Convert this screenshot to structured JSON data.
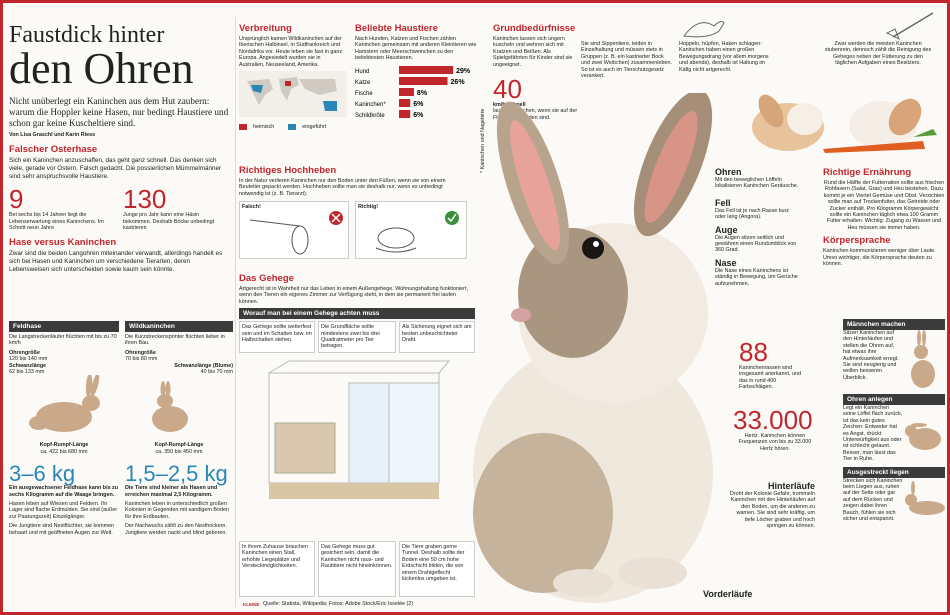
{
  "title_line1": "Faustdick hinter",
  "title_line2": "den Ohren",
  "lead": "Nicht unüberlegt ein Kaninchen aus dem Hut zaubern: warum die Hoppler keine Hasen, nur bedingt Haustiere und schon gar keine Kuscheltiere sind.",
  "byline": "Von Lisa Graschl und Karin Riess",
  "osterhase": {
    "head": "Falscher Osterhase",
    "text": "Sich ein Kaninchen anzuschaffen, das geht ganz schnell. Das denken sich viele, gerade vor Ostern. Falsch gedacht. Die possierlichen Mümmelmänner sind sehr anspruchsvolle Haustiere."
  },
  "num9": {
    "value": "9",
    "text": "Bei sechs bis 14 Jahren liegt die Lebenserwartung eines Kaninchens. Im Schnitt neun Jahre"
  },
  "num130": {
    "value": "130",
    "text": "Junge pro Jahr kann eine Häsin bekommen. Deshalb Böcke unbedingt kastrieren"
  },
  "hase": {
    "head": "Hase versus Kaninchen",
    "text": "Zwar sind die beiden Langohren miteinander verwandt, allerdings handelt es sich bei Hasen und Kaninchen um verschiedene Tierarten, deren Lebensweisen sich unterscheiden sowie kaum sein könnte."
  },
  "feldhase": {
    "label": "Feldhase",
    "text": "Die Langstreckenläufer flüchten mit bis zu 70 km/h",
    "ohr_label": "Ohrengröße",
    "ohr_val": "120 bis 140 mm",
    "schwanz_label": "Schwanzlänge",
    "schwanz_val": "62 bis 133 mm",
    "kr_label": "Kopf-Rumpf-Länge",
    "kr_val": "ca. 422 bis 680 mm",
    "weight": "3–6 kg",
    "weight_text": "Ein ausgewachsener Feldhase kann bis zu sechs Kilogramm auf die Waage bringen.",
    "life_text": "Hasen leben auf Wiesen und Feldern. Ihr Lager sind flache Erdmulden. Sie sind (außer zur Paarungszeit) Einzelgänger.",
    "young_text": "Die Jungtiere sind Nestflüchter, sie kommen behaart und mit geöffneten Augen zur Welt."
  },
  "wildkaninchen": {
    "label": "Wildkaninchen",
    "text": "Die Kurzstreckensprinter flüchten lieber in ihren Bau.",
    "ohr_label": "Ohrengröße",
    "ohr_val": "70 bis 80 mm",
    "schwanz_label": "Schwanzlänge (Blume)",
    "schwanz_val": "40 bis 70 mm",
    "kr_label": "Kopf-Rumpf-Länge",
    "kr_val": "ca. 350 bis 450 mm",
    "weight": "1,5–2,5 kg",
    "weight_text": "Die Tiere sind kleiner als Hasen und erreichen maximal 2,5 Kilogramm.",
    "life_text": "Kaninchen leben in unterschiedlich großen Kolonien in Gegenden mit sandigem Boden für ihre Erdbauten.",
    "young_text": "Der Nachwuchs zählt zu den Nesthockern. Jungtiere werden nackt und blind geboren."
  },
  "verbreitung": {
    "head": "Verbreitung",
    "text": "Ursprünglich kamen Wildkaninchen auf der Iberischen Halbinsel, in Südfrankreich und Nordafrika vor. Heute leben sie fast in ganz Europa. Angesiedelt wurden sie in Australien, Neuseeland, Amerika.",
    "legend1": "heimisch",
    "legend2": "eingeführt"
  },
  "haustiere": {
    "head": "Beliebte Haustiere",
    "text": "Nach Hunden, Katzen und Fischen zählen Kaninchen gemeinsam mit anderen Kleintieren wie Hamstern oder Meerschweinchen zu den beliebtesten Haustieren."
  },
  "chart_data": {
    "type": "bar",
    "categories": [
      "Hund",
      "Katze",
      "Fische",
      "Kaninchen*",
      "Schildkröte"
    ],
    "values": [
      29,
      26,
      8,
      6,
      6
    ],
    "value_labels": [
      "29%",
      "26%",
      "8%",
      "6%",
      "6%"
    ],
    "note": "* Kaninchen und Nagetiere",
    "xlim": [
      0,
      30
    ]
  },
  "grundbed": {
    "head": "Grundbedürfnisse",
    "text": "Kaninchen lassen sich ungern kuscheln und wehren sich mit Kratzen und Beißen. Als Spielgefährten für Kinder sind sie ungeeignet.",
    "sipp": "Sie sind Sippentiere, leiden in Einzelhaltung und müssen stets in Gruppen (z. B. ein kastrierter Bock und zwei Weibchen) zusammenleben. So ist es auch im Tierschutzgesetz verankert.",
    "hopp": "Hoppeln, hüpfen, Haken schlagen: Kaninchen haben einen großen Bewegungsdrang (vor allem morgens und abends), deshalb ist Haltung im Käfig nicht artgerecht.",
    "zwar": "Zwar werden die meisten Kaninchen stubenrein, dennoch zählt die Reinigung des Geheges neben der Fütterung zu den täglichen Aufgaben eines Besitzers."
  },
  "speed": {
    "value": "40",
    "unit": "km/h schnell",
    "text": "laufen Kaninchen, wenn sie auf der Flucht vor Feinden sind."
  },
  "hochheben": {
    "head": "Richtiges Hochheben",
    "text": "In der Natur verlieren Kaninchen nur den Boden unter den Füßen, wenn sie von einem Beutetier gepackt werden. Hochheben sollte man sie deshalb nur, wenn es unbedingt notwendig ist (z. B. Tierarzt).",
    "falsch": "Falsch!",
    "richtig": "Richtig!"
  },
  "gehege": {
    "head": "Das Gehege",
    "text": "Artgerecht ist in Wahrheit nur das Leben in einem Außengehege. Wohnungshaltung funktioniert, wenn den Tieren ein eigenes Zimmer zur Verfügung steht, in dem sie permanent frei laufen können.",
    "bar": "Worauf man bei einem Gehege achten muss",
    "b1": "Das Gehege sollte wetterfest sein und im Schatten bzw. im Halbschatten stehen.",
    "b2": "Die Grundfläche sollte mindestens zwei bis drei Quadratmeter pro Tier betragen.",
    "b3": "Als Sicherung eignet sich am besten unbeschichteter Draht.",
    "c1": "In ihrem Zuhause brauchen Kaninchen einen Stall, erhöhte Liegeplätze und Versteckmöglichkeiten.",
    "c2": "Das Gehege muss gut gesichert sein, damit die Kaninchen nicht raus- und Raubtiere nicht hineinkönnen.",
    "c3": "Die Tiere graben gerne Tunnel. Deshalb sollte der Boden eine 50 cm hohe Erdschicht bilden, die von einem Drahtgeflecht lückenlos umgeben ist.",
    "source": "Quelle: Statista, Wikipedia; Fotos: Adobe Stock/Eric Isselée (2)",
    "logo": "KLEINE"
  },
  "anatomy": {
    "ohren_h": "Ohren",
    "ohren_t": "Mit den beweglichen Löffeln lokalisieren Kaninchen Geräusche.",
    "fell_h": "Fell",
    "fell_t": "Das Fell ist je nach Rasse kurz oder lang (Angora).",
    "auge_h": "Auge",
    "auge_t": "Die Augen sitzen seitlich und gewähren einen Rundumblick von 360 Grad.",
    "nase_h": "Nase",
    "nase_t": "Die Nase eines Kaninchens ist ständig in Bewegung, um Gerüche aufzunehmen.",
    "num88": "88",
    "num88_t": "Kaninchenrassen sind insgesamt anerkannt, und das in rund 400 Farbschlägen.",
    "num33": "33.000",
    "num33_t": "Hertz. Kaninchen können Frequenzen von bis zu 33.000 Hertz hören.",
    "hinter_h": "Hinterläufe",
    "hinter_t": "Droht der Kolonie Gefahr, trommeln Kaninchen mit den Hinterläufen auf den Boden, um die anderen zu warnen. Sie sind sehr kräftig, um tiefe Löcher graben und hoch springen zu können.",
    "vorder_h": "Vorderläufe"
  },
  "ernaehrung": {
    "head": "Richtige Ernährung",
    "text": "Rund die Hälfte der Futterration sollte aus frischen Rohfasern (Salat, Gras) und Heu bestehen. Dazu kommt je ein Viertel Gemüse und Obst. Verzichten sollte man auf Trockenfutter, das Getreide oder Zucker enthält. Pro Kilogramm Körpergewicht sollte ein Kaninchen täglich etwa 100 Gramm Futter erhalten. Wichtig: Zugang zu Wasser und Heu müssen sie immer haben."
  },
  "koerper": {
    "head": "Körpersprache",
    "text": "Kaninchen kommunizieren weniger über Laute. Umso wichtiger, die Körpersprache deuten zu können.",
    "m1": "Männchen machen",
    "m1t": "Sitzen Kaninchen auf den Hinterläufen und stellen die Ohren auf, hat etwas ihre Aufmerksamkeit erregt. Sie sind neugierig und wollen besseren Überblick.",
    "m2": "Ohren anlegen",
    "m2t": "Legt ein Kaninchen seine Löffel flach zurück, ist das kein gutes Zeichen: Entweder hat es Angst, drückt Unterwürfigkeit aus oder ist schlecht gelaunt. Besser, man lässt das Tier in Ruhe.",
    "m3": "Ausgestreckt liegen",
    "m3t": "Strecken sich Kaninchen beim Liegen aus, ruhen auf der Seite oder gar auf dem Rücken und zeigen dabei ihren Bauch, fühlen sie sich sicher und entspannt."
  }
}
